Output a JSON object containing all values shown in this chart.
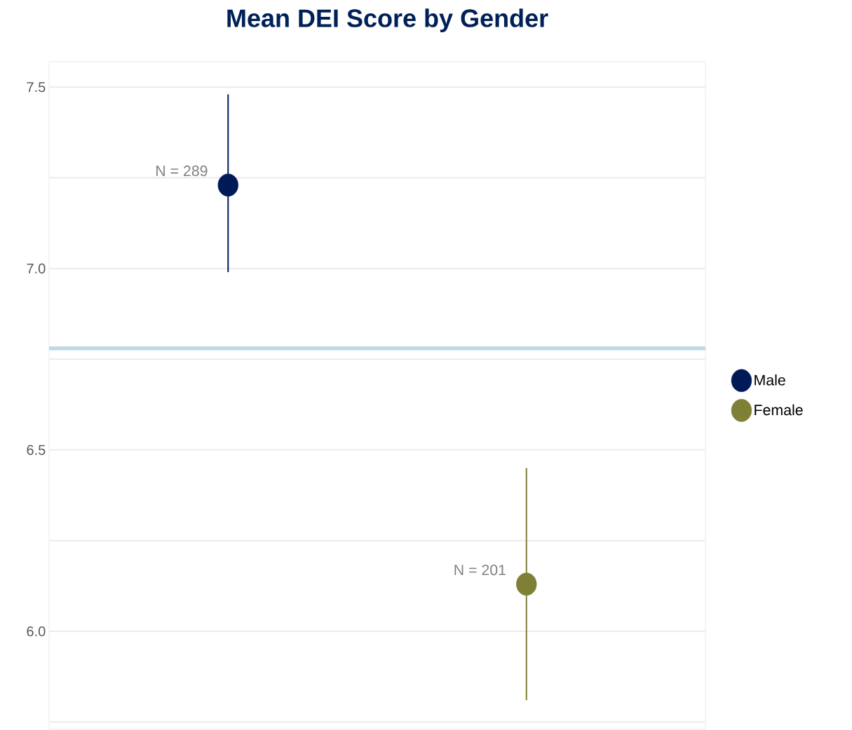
{
  "chart_data": {
    "type": "scatter",
    "title": "Mean DEI Score by Gender",
    "categories": [
      null,
      null
    ],
    "series": [
      {
        "name": "Male",
        "color": "#001a57",
        "values": [
          7.23,
          null
        ],
        "errors": [
          [
            6.99,
            7.48
          ],
          null
        ]
      },
      {
        "name": "Female",
        "color": "#7f7f35",
        "values": [
          null,
          6.13
        ],
        "errors": [
          null,
          [
            5.81,
            6.45
          ]
        ]
      }
    ],
    "annotations": [
      "N = 289",
      "N = 201"
    ],
    "ylim": [
      5.73,
      7.57
    ],
    "yticks": [
      {
        "value": 5.75,
        "label": null
      },
      {
        "value": 6.0,
        "label": "6.0"
      },
      {
        "value": 6.25,
        "label": null
      },
      6.5,
      {
        "value": 6.75,
        "label": null
      },
      {
        "value": 7.0,
        "label": "7.0"
      },
      {
        "value": 7.25,
        "label": null
      },
      7.5
    ],
    "ref_lines": [
      {
        "axis": "y",
        "value": 6.78,
        "color": "#bcd9e4"
      }
    ],
    "grid": "y",
    "legend": "right",
    "tick_labels": "y"
  }
}
